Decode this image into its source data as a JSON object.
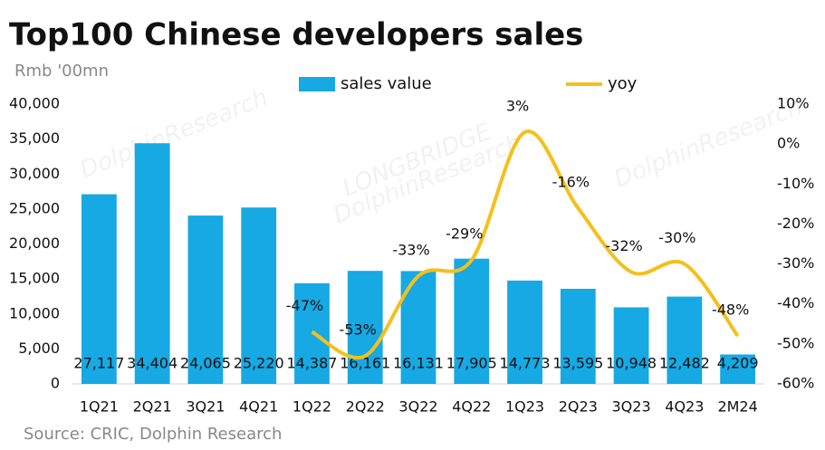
{
  "chart_data": {
    "type": "bar-line",
    "title": "Top100 Chinese developers sales",
    "y_axis_label": "Rmb '00mn",
    "source": "Source: CRIC, Dolphin Research",
    "watermarks": [
      "LONGBRIDGE",
      "DolphinResearch"
    ],
    "categories": [
      "1Q21",
      "2Q21",
      "3Q21",
      "4Q21",
      "1Q22",
      "2Q22",
      "3Q22",
      "4Q22",
      "1Q23",
      "2Q23",
      "3Q23",
      "4Q23",
      "2M24"
    ],
    "series": [
      {
        "name": "sales value",
        "type": "bar",
        "color": "#16a9e3",
        "values": [
          27117,
          34404,
          24065,
          25220,
          14387,
          16161,
          16131,
          17905,
          14773,
          13595,
          10948,
          12482,
          4209
        ],
        "value_labels": [
          "27,117",
          "34,404",
          "24,065",
          "25,220",
          "14,387",
          "16,161",
          "16,131",
          "17,905",
          "14,773",
          "13,595",
          "10,948",
          "12,482",
          "4,209"
        ]
      },
      {
        "name": "yoy",
        "type": "line",
        "axis": "y2",
        "color": "#f4c01a",
        "values": [
          null,
          null,
          null,
          null,
          -47,
          -53,
          -33,
          -29,
          3,
          -16,
          -32,
          -30,
          -48
        ],
        "value_labels": [
          null,
          null,
          null,
          null,
          "-47%",
          "-53%",
          "-33%",
          "-29%",
          "3%",
          "-16%",
          "-32%",
          "-30%",
          "-48%"
        ]
      }
    ],
    "ylim": [
      0,
      40000
    ],
    "yticks": [
      0,
      {
        "value": 5000,
        "label": "5,000"
      },
      {
        "value": 10000,
        "label": "10,000"
      },
      {
        "value": 15000,
        "label": "15,000"
      },
      {
        "value": 20000,
        "label": "20,000"
      },
      {
        "value": 25000,
        "label": "25,000"
      },
      {
        "value": 30000,
        "label": "30,000"
      },
      {
        "value": 35000,
        "label": "35,000"
      },
      {
        "value": 40000,
        "label": "40,000"
      }
    ],
    "y2lim": [
      -60,
      10
    ],
    "y2ticks": [
      {
        "value": -60,
        "label": "-60%"
      },
      {
        "value": -50,
        "label": "-50%"
      },
      {
        "value": -40,
        "label": "-40%"
      },
      {
        "value": -30,
        "label": "-30%"
      },
      {
        "value": -20,
        "label": "-20%"
      },
      {
        "value": -10,
        "label": "-10%"
      },
      {
        "value": 0,
        "label": "0%"
      },
      {
        "value": 10,
        "label": "10%"
      }
    ],
    "legend": "top"
  }
}
